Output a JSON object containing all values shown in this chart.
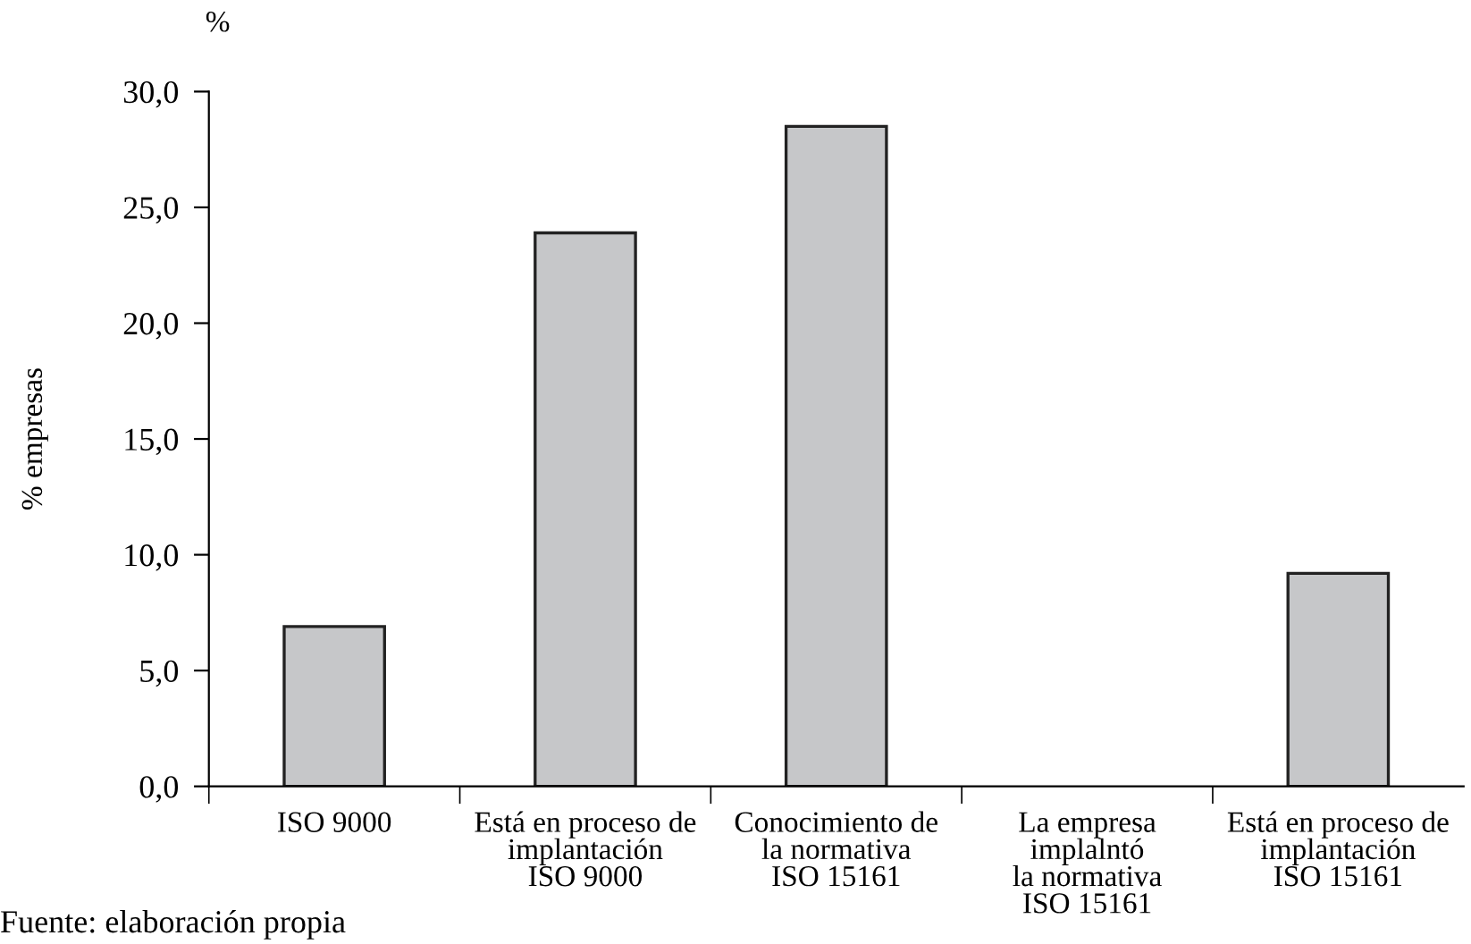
{
  "chart_data": {
    "type": "bar",
    "categories": [
      "ISO 9000",
      "Está en proceso de\nimplantación\nISO 9000",
      "Conocimiento de\nla normativa\nISO 15161",
      "La empresa\nimplalntó\nla normativa\nISO 15161",
      "Está en proceso de\nimplantación\nISO 15161"
    ],
    "values": [
      6.9,
      23.9,
      28.5,
      0,
      9.2
    ],
    "color": "#c6c7c9",
    "ylabel": "% empresas",
    "ylim": [
      0,
      30
    ],
    "yticks": [
      {
        "value": 0,
        "label": "0,0"
      },
      {
        "value": 5,
        "label": "5,0"
      },
      {
        "value": 10,
        "label": "10,0"
      },
      {
        "value": 15,
        "label": "15,0"
      },
      {
        "value": 20,
        "label": "20,0"
      },
      {
        "value": 25,
        "label": "25,0"
      },
      {
        "value": 30,
        "label": "30,0"
      }
    ],
    "annotations": [
      "%",
      "Fuente: elaboración propia"
    ],
    "grid": false,
    "legend": false
  }
}
